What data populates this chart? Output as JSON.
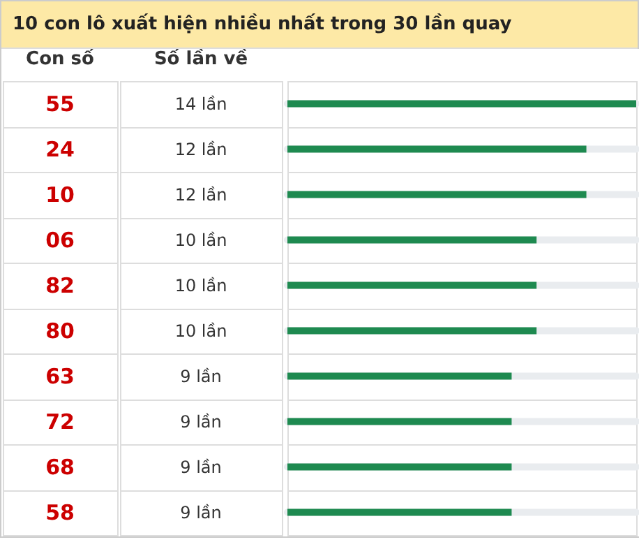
{
  "chart_data": {
    "type": "bar",
    "orientation": "horizontal",
    "title": "10 con lô xuất hiện nhiều nhất trong 30 lần quay",
    "annotations": [
      "Con số",
      "Số lần về"
    ],
    "categories": [
      "55",
      "24",
      "10",
      "06",
      "82",
      "80",
      "63",
      "72",
      "68",
      "58"
    ],
    "values": [
      14,
      12,
      12,
      10,
      10,
      10,
      9,
      9,
      9,
      9
    ],
    "value_labels": [
      "14 lần",
      "12 lần",
      "12 lần",
      "10 lần",
      "10 lần",
      "10 lần",
      "9 lần",
      "9 lần",
      "9 lần",
      "9 lần"
    ],
    "color": "#1e8a50",
    "xlim": [
      0,
      14
    ],
    "grid": "y"
  }
}
